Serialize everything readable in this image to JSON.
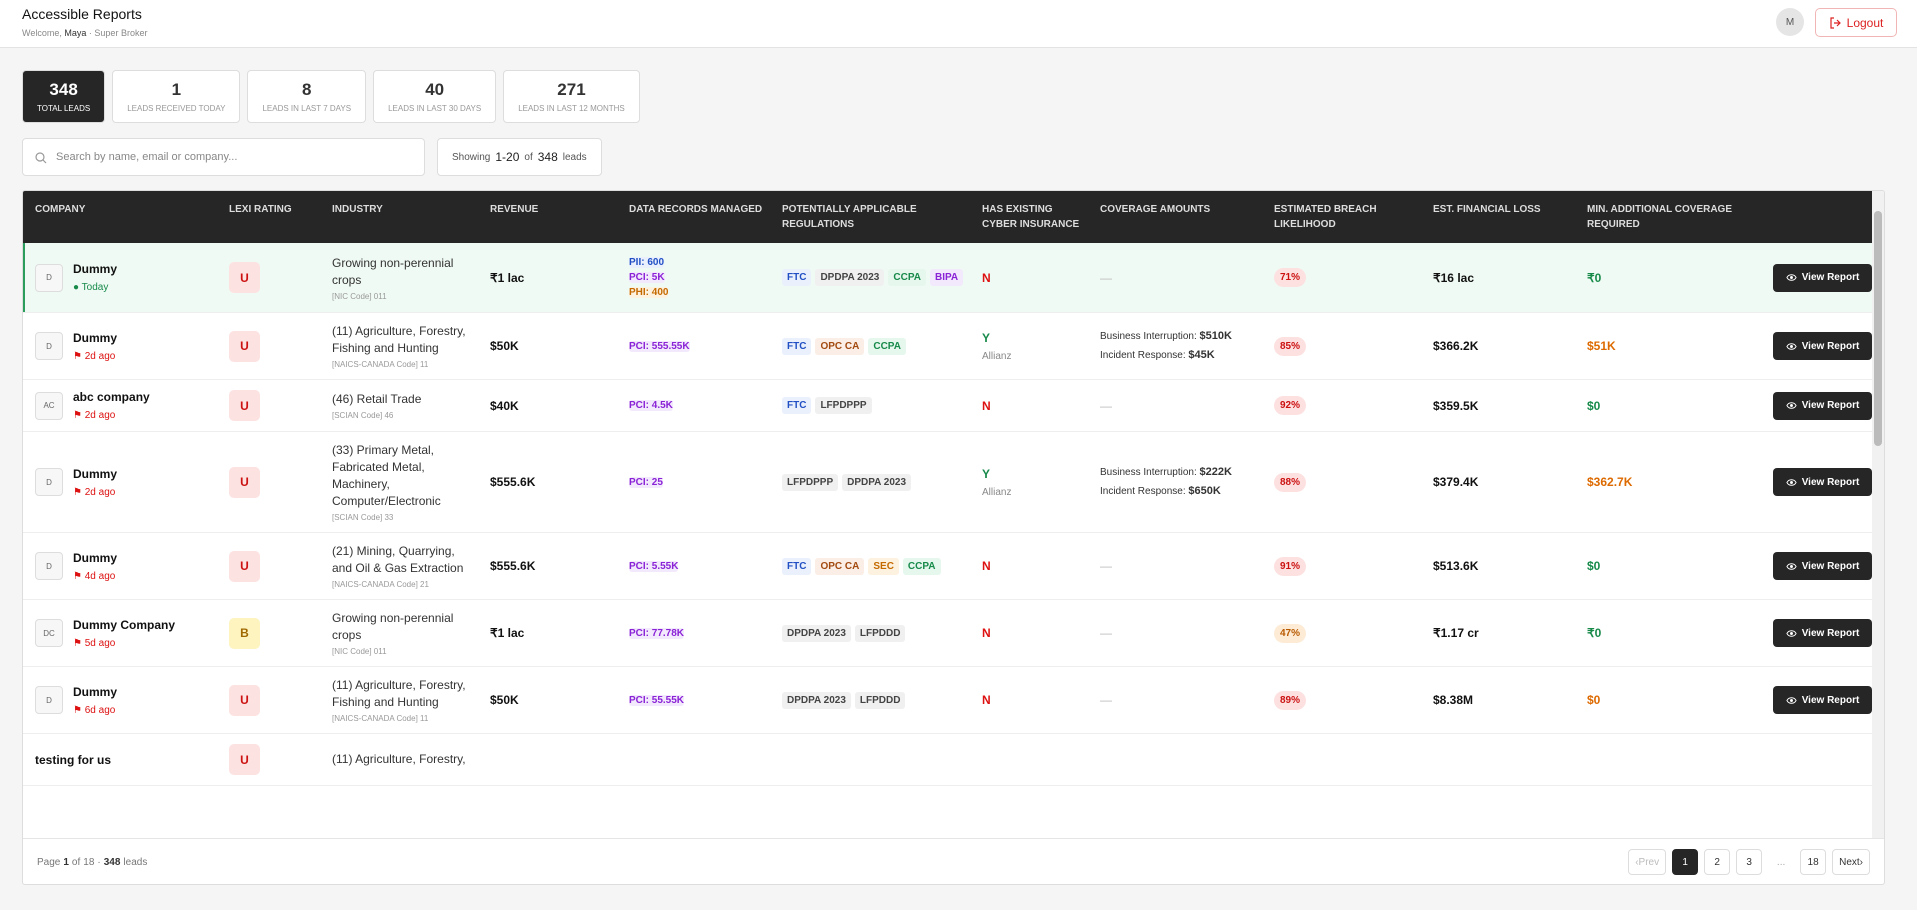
{
  "header": {
    "title": "Accessible Reports",
    "welcome": "Welcome,",
    "user": "Maya",
    "separator": "·",
    "role": "Super Broker",
    "avatar": "M",
    "logout": "Logout"
  },
  "stats": [
    {
      "value": "348",
      "label": "TOTAL LEADS",
      "active": true
    },
    {
      "value": "1",
      "label": "LEADS RECEIVED TODAY"
    },
    {
      "value": "8",
      "label": "LEADS IN LAST 7 DAYS"
    },
    {
      "value": "40",
      "label": "LEADS IN LAST 30 DAYS"
    },
    {
      "value": "271",
      "label": "LEADS IN LAST 12 MONTHS"
    }
  ],
  "search": {
    "placeholder": "Search by name, email or company...",
    "showing": "Showing",
    "range": "1-20",
    "of": "of",
    "total": "348",
    "unit": "leads"
  },
  "table": {
    "columns": [
      "COMPANY",
      "LEXI RATING",
      "INDUSTRY",
      "REVENUE",
      "DATA RECORDS MANAGED",
      "POTENTIALLY APPLICABLE REGULATIONS",
      "HAS EXISTING CYBER INSURANCE",
      "COVERAGE AMOUNTS",
      "ESTIMATED BREACH LIKELIHOOD",
      "EST. FINANCIAL LOSS",
      "MIN. ADDITIONAL COVERAGE REQUIRED"
    ],
    "rows": [
      {
        "initials": "D",
        "company": "Dummy",
        "when": "Today",
        "when_tone": "green",
        "rating": "U",
        "rating_tone": "red",
        "industry": "Growing non-perennial crops",
        "code": "[NIC Code] 011",
        "revenue": "₹1 lac",
        "records": [
          {
            "label": "PII: 600",
            "tone": "blue"
          },
          {
            "label": "PCI: 5K",
            "tone": "purple"
          },
          {
            "label": "PHI: 400",
            "tone": "orange"
          }
        ],
        "regulations": [
          {
            "label": "FTC",
            "tone": "blue"
          },
          {
            "label": "DPDPA 2023",
            "tone": "gray"
          },
          {
            "label": "CCPA",
            "tone": "green"
          },
          {
            "label": "BIPA",
            "tone": "purple"
          }
        ],
        "insurance": "N",
        "insurance_tone": "red",
        "coverage": "—",
        "breach": "71%",
        "breach_tone": "red",
        "loss": "₹16 lac",
        "min_coverage": "₹0",
        "min_tone": "green",
        "action": "View Report",
        "highlight": true
      },
      {
        "initials": "D",
        "company": "Dummy",
        "when": "2d ago",
        "when_tone": "red",
        "rating": "U",
        "rating_tone": "red",
        "industry": "(11) Agriculture, Forestry, Fishing and Hunting",
        "code": "[NAICS-CANADA Code] 11",
        "revenue": "$50K",
        "records": [
          {
            "label": "PCI: 555.55K",
            "tone": "purple"
          }
        ],
        "regulations": [
          {
            "label": "FTC",
            "tone": "blue"
          },
          {
            "label": "OPC CA",
            "tone": "brown"
          },
          {
            "label": "CCPA",
            "tone": "green"
          }
        ],
        "insurance": "Y",
        "insurance_tone": "green",
        "insurer": "Allianz",
        "coverage": [
          {
            "label": "Business Interruption:",
            "value": "$510K"
          },
          {
            "label": "Incident Response:",
            "value": "$45K"
          }
        ],
        "breach": "85%",
        "breach_tone": "red",
        "loss": "$366.2K",
        "min_coverage": "$51K",
        "min_tone": "orange",
        "action": "View Report"
      },
      {
        "initials": "AC",
        "company": "abc company",
        "when": "2d ago",
        "when_tone": "red",
        "rating": "U",
        "rating_tone": "red",
        "industry": "(46) Retail Trade",
        "code": "[SCIAN Code] 46",
        "revenue": "$40K",
        "records": [
          {
            "label": "PCI: 4.5K",
            "tone": "purple"
          }
        ],
        "regulations": [
          {
            "label": "FTC",
            "tone": "blue"
          },
          {
            "label": "LFPDPPP",
            "tone": "gray"
          }
        ],
        "insurance": "N",
        "insurance_tone": "red",
        "coverage": "—",
        "breach": "92%",
        "breach_tone": "red",
        "loss": "$359.5K",
        "min_coverage": "$0",
        "min_tone": "green",
        "action": "View Report"
      },
      {
        "initials": "D",
        "company": "Dummy",
        "when": "2d ago",
        "when_tone": "red",
        "rating": "U",
        "rating_tone": "red",
        "industry": "(33) Primary Metal, Fabricated Metal, Machinery, Computer/Electronic",
        "code": "[SCIAN Code] 33",
        "revenue": "$555.6K",
        "records": [
          {
            "label": "PCI: 25",
            "tone": "purple"
          }
        ],
        "regulations": [
          {
            "label": "LFPDPPP",
            "tone": "gray"
          },
          {
            "label": "DPDPA 2023",
            "tone": "gray"
          }
        ],
        "insurance": "Y",
        "insurance_tone": "green",
        "insurer": "Allianz",
        "coverage": [
          {
            "label": "Business Interruption:",
            "value": "$222K"
          },
          {
            "label": "Incident Response:",
            "value": "$650K"
          }
        ],
        "breach": "88%",
        "breach_tone": "red",
        "loss": "$379.4K",
        "min_coverage": "$362.7K",
        "min_tone": "orange",
        "action": "View Report"
      },
      {
        "initials": "D",
        "company": "Dummy",
        "when": "4d ago",
        "when_tone": "red",
        "rating": "U",
        "rating_tone": "red",
        "industry": "(21) Mining, Quarrying, and Oil & Gas Extraction",
        "code": "[NAICS-CANADA Code] 21",
        "revenue": "$555.6K",
        "records": [
          {
            "label": "PCI: 5.55K",
            "tone": "purple"
          }
        ],
        "regulations": [
          {
            "label": "FTC",
            "tone": "blue"
          },
          {
            "label": "OPC CA",
            "tone": "brown"
          },
          {
            "label": "SEC",
            "tone": "orange"
          },
          {
            "label": "CCPA",
            "tone": "green"
          }
        ],
        "insurance": "N",
        "insurance_tone": "red",
        "coverage": "—",
        "breach": "91%",
        "breach_tone": "red",
        "loss": "$513.6K",
        "min_coverage": "$0",
        "min_tone": "green",
        "action": "View Report"
      },
      {
        "initials": "DC",
        "company": "Dummy Company",
        "when": "5d ago",
        "when_tone": "red",
        "rating": "B",
        "rating_tone": "yellow",
        "industry": "Growing non-perennial crops",
        "code": "[NIC Code] 011",
        "revenue": "₹1 lac",
        "records": [
          {
            "label": "PCI: 77.78K",
            "tone": "purple"
          }
        ],
        "regulations": [
          {
            "label": "DPDPA 2023",
            "tone": "gray"
          },
          {
            "label": "LFPDDD",
            "tone": "gray"
          }
        ],
        "insurance": "N",
        "insurance_tone": "red",
        "coverage": "—",
        "breach": "47%",
        "breach_tone": "orange",
        "loss": "₹1.17 cr",
        "min_coverage": "₹0",
        "min_tone": "green",
        "action": "View Report"
      },
      {
        "initials": "D",
        "company": "Dummy",
        "when": "6d ago",
        "when_tone": "red",
        "rating": "U",
        "rating_tone": "red",
        "industry": "(11) Agriculture, Forestry, Fishing and Hunting",
        "code": "[NAICS-CANADA Code] 11",
        "revenue": "$50K",
        "records": [
          {
            "label": "PCI: 55.55K",
            "tone": "purple"
          }
        ],
        "regulations": [
          {
            "label": "DPDPA 2023",
            "tone": "gray"
          },
          {
            "label": "LFPDDD",
            "tone": "gray"
          }
        ],
        "insurance": "N",
        "insurance_tone": "red",
        "coverage": "—",
        "breach": "89%",
        "breach_tone": "red",
        "loss": "$8.38M",
        "min_coverage": "$0",
        "min_tone": "orange",
        "action": "View Report"
      },
      {
        "company": "testing for us",
        "rating": "U",
        "rating_tone": "red",
        "industry": "(11) Agriculture, Forestry,"
      }
    ]
  },
  "footer": {
    "page_label": "Page",
    "page": "1",
    "of": "of",
    "pages": "18",
    "separator": "·",
    "total": "348",
    "unit": "leads"
  },
  "pagination": {
    "prev": "Prev",
    "pages": [
      "1",
      "2",
      "3",
      "...",
      "18"
    ],
    "current": 0,
    "next": "Next"
  }
}
